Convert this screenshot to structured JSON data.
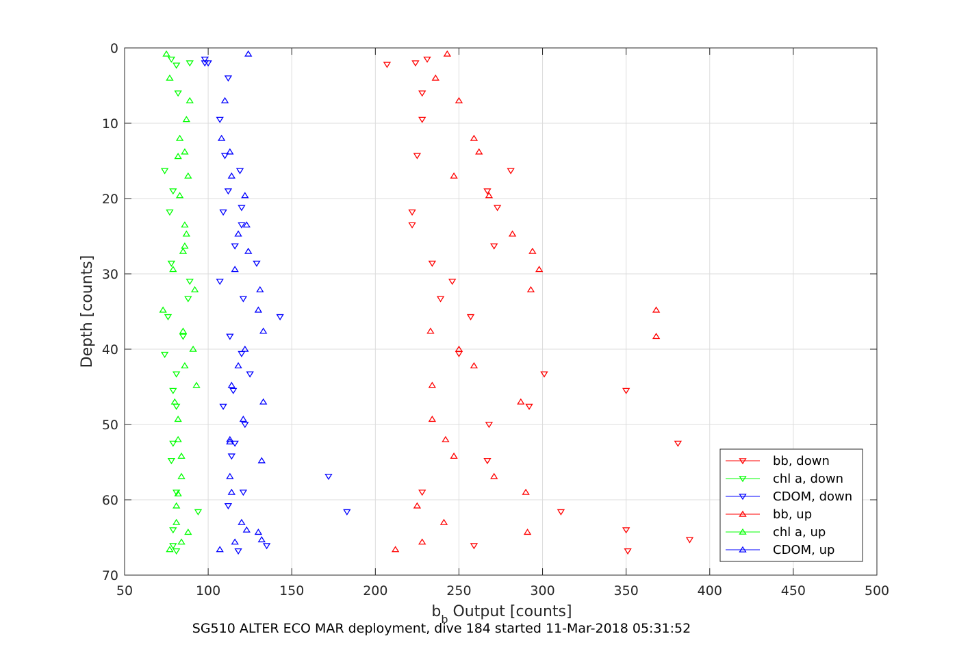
{
  "chart_data": {
    "type": "scatter",
    "title": "",
    "xlabel_main": "b",
    "xlabel_sub": "b",
    "xlabel_rest": " Output [counts]",
    "ylabel": "Depth [counts]",
    "caption": "SG510 ALTER ECO MAR deployment, dive 184 started 11-Mar-2018 05:31:52",
    "xlim": [
      50,
      500
    ],
    "ylim": [
      0,
      70
    ],
    "y_reversed": true,
    "grid": true,
    "legend_position": "bottom-right",
    "xticks": [
      "50",
      "100",
      "150",
      "200",
      "250",
      "300",
      "350",
      "400",
      "450",
      "500"
    ],
    "yticks": [
      "0",
      "10",
      "20",
      "30",
      "40",
      "50",
      "60",
      "70"
    ],
    "series": [
      {
        "name": "bb, down",
        "color": "#ff0000",
        "marker": "triangle-down",
        "points": [
          [
            231,
            1.5
          ],
          [
            224,
            2
          ],
          [
            207,
            2.2
          ],
          [
            228,
            6
          ],
          [
            228,
            9.5
          ],
          [
            225,
            14.3
          ],
          [
            281,
            16.3
          ],
          [
            267,
            19
          ],
          [
            273,
            21.2
          ],
          [
            222,
            21.8
          ],
          [
            222,
            23.5
          ],
          [
            271,
            26.3
          ],
          [
            234,
            28.6
          ],
          [
            246,
            31
          ],
          [
            239,
            33.3
          ],
          [
            257,
            35.7
          ],
          [
            250,
            40.6
          ],
          [
            301,
            43.3
          ],
          [
            350,
            45.5
          ],
          [
            292,
            47.6
          ],
          [
            268,
            50
          ],
          [
            381,
            52.5
          ],
          [
            267,
            54.8
          ],
          [
            228,
            59
          ],
          [
            311,
            61.6
          ],
          [
            350,
            64
          ],
          [
            388,
            65.3
          ],
          [
            259,
            66.1
          ],
          [
            351,
            66.8
          ]
        ]
      },
      {
        "name": "chl a, down",
        "color": "#00ff00",
        "marker": "triangle-down",
        "points": [
          [
            78,
            1.5
          ],
          [
            89,
            2
          ],
          [
            81,
            2.3
          ],
          [
            82,
            6
          ],
          [
            74,
            16.3
          ],
          [
            79,
            19
          ],
          [
            77,
            21.8
          ],
          [
            78,
            28.6
          ],
          [
            89,
            31
          ],
          [
            88,
            33.3
          ],
          [
            76,
            35.7
          ],
          [
            85,
            38.3
          ],
          [
            74,
            40.7
          ],
          [
            81,
            43.3
          ],
          [
            79,
            45.5
          ],
          [
            81,
            47.6
          ],
          [
            79,
            52.5
          ],
          [
            78,
            54.8
          ],
          [
            81,
            59
          ],
          [
            94,
            61.6
          ],
          [
            79,
            64
          ],
          [
            79,
            66.1
          ],
          [
            81,
            66.8
          ]
        ]
      },
      {
        "name": "CDOM, down",
        "color": "#0000ff",
        "marker": "triangle-down",
        "points": [
          [
            98,
            1.5
          ],
          [
            100,
            2
          ],
          [
            98,
            2
          ],
          [
            112,
            4
          ],
          [
            107,
            9.5
          ],
          [
            110,
            14.3
          ],
          [
            119,
            16.3
          ],
          [
            112,
            19
          ],
          [
            120,
            21.2
          ],
          [
            109,
            21.8
          ],
          [
            120,
            23.5
          ],
          [
            116,
            26.3
          ],
          [
            129,
            28.6
          ],
          [
            107,
            31
          ],
          [
            121,
            33.3
          ],
          [
            143,
            35.7
          ],
          [
            113,
            38.3
          ],
          [
            120,
            40.6
          ],
          [
            125,
            43.3
          ],
          [
            115,
            45.5
          ],
          [
            109,
            47.6
          ],
          [
            122,
            50
          ],
          [
            116,
            52.5
          ],
          [
            114,
            54.2
          ],
          [
            172,
            56.9
          ],
          [
            121,
            59
          ],
          [
            112,
            60.8
          ],
          [
            183,
            61.6
          ],
          [
            135,
            66.1
          ],
          [
            118,
            66.8
          ]
        ]
      },
      {
        "name": "bb, up",
        "color": "#ff0000",
        "marker": "triangle-up",
        "points": [
          [
            243,
            0.8
          ],
          [
            236,
            4
          ],
          [
            250,
            7
          ],
          [
            259,
            12
          ],
          [
            262,
            13.8
          ],
          [
            247,
            17
          ],
          [
            268,
            19.6
          ],
          [
            282,
            24.7
          ],
          [
            294,
            27
          ],
          [
            298,
            29.4
          ],
          [
            293,
            32.1
          ],
          [
            368,
            34.8
          ],
          [
            368,
            38.3
          ],
          [
            233,
            37.6
          ],
          [
            250,
            40
          ],
          [
            259,
            42.2
          ],
          [
            234,
            44.8
          ],
          [
            287,
            47
          ],
          [
            234,
            49.3
          ],
          [
            242,
            52
          ],
          [
            247,
            54.2
          ],
          [
            271,
            56.9
          ],
          [
            290,
            59
          ],
          [
            225,
            60.8
          ],
          [
            241,
            63
          ],
          [
            291,
            64.3
          ],
          [
            228,
            65.6
          ],
          [
            212,
            66.6
          ]
        ]
      },
      {
        "name": "chl a, up",
        "color": "#00ff00",
        "marker": "triangle-up",
        "points": [
          [
            75,
            0.8
          ],
          [
            77,
            4
          ],
          [
            89,
            7
          ],
          [
            87,
            9.5
          ],
          [
            83,
            12
          ],
          [
            86,
            13.8
          ],
          [
            82,
            14.4
          ],
          [
            88,
            17
          ],
          [
            83,
            19.6
          ],
          [
            86,
            23.5
          ],
          [
            87,
            24.7
          ],
          [
            86,
            26.3
          ],
          [
            85,
            27
          ],
          [
            79,
            29.4
          ],
          [
            92,
            32.1
          ],
          [
            73,
            34.8
          ],
          [
            85,
            37.6
          ],
          [
            91,
            40
          ],
          [
            86,
            42.2
          ],
          [
            93,
            44.8
          ],
          [
            80,
            47
          ],
          [
            82,
            49.3
          ],
          [
            82,
            52
          ],
          [
            84,
            54.2
          ],
          [
            84,
            56.9
          ],
          [
            82,
            59.2
          ],
          [
            81,
            60.8
          ],
          [
            81,
            63
          ],
          [
            88,
            64.3
          ],
          [
            84,
            65.6
          ],
          [
            77,
            66.6
          ]
        ]
      },
      {
        "name": "CDOM, up",
        "color": "#0000ff",
        "marker": "triangle-up",
        "points": [
          [
            124,
            0.8
          ],
          [
            110,
            7
          ],
          [
            108,
            12
          ],
          [
            113,
            13.8
          ],
          [
            114,
            17
          ],
          [
            122,
            19.6
          ],
          [
            123,
            23.5
          ],
          [
            118,
            24.7
          ],
          [
            124,
            27
          ],
          [
            116,
            29.4
          ],
          [
            131,
            32.1
          ],
          [
            130,
            34.8
          ],
          [
            133,
            37.6
          ],
          [
            122,
            40
          ],
          [
            118,
            42.2
          ],
          [
            114,
            44.8
          ],
          [
            133,
            47
          ],
          [
            121,
            49.3
          ],
          [
            113,
            52
          ],
          [
            113,
            52.3
          ],
          [
            132,
            54.8
          ],
          [
            113,
            56.9
          ],
          [
            114,
            59
          ],
          [
            120,
            63
          ],
          [
            123,
            64
          ],
          [
            130,
            64.3
          ],
          [
            132,
            65.3
          ],
          [
            116,
            65.6
          ],
          [
            107,
            66.6
          ]
        ]
      }
    ]
  }
}
